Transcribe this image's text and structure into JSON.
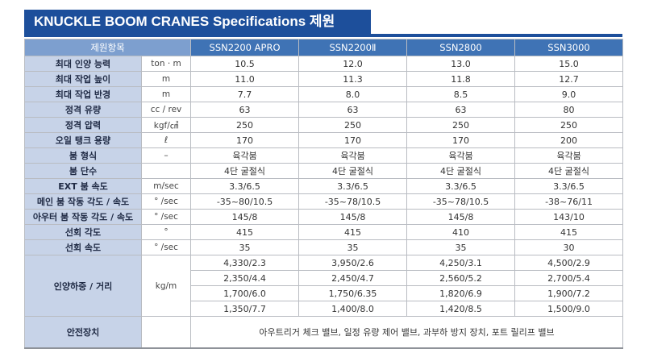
{
  "title": "KNUCKLE BOOM CRANES Specifications 제원",
  "header": {
    "item_label": "제원항목",
    "models": [
      "SSN2200 APRO",
      "SSN2200Ⅱ",
      "SSN2800",
      "SSN3000"
    ]
  },
  "rows": [
    {
      "label": "최대 인양 능력",
      "unit": "ton · m",
      "values": [
        "10.5",
        "12.0",
        "13.0",
        "15.0"
      ]
    },
    {
      "label": "최대 작업 높이",
      "unit": "m",
      "values": [
        "11.0",
        "11.3",
        "11.8",
        "12.7"
      ]
    },
    {
      "label": "최대 작업 반경",
      "unit": "m",
      "values": [
        "7.7",
        "8.0",
        "8.5",
        "9.0"
      ]
    },
    {
      "label": "정격 유량",
      "unit": "cc / rev",
      "values": [
        "63",
        "63",
        "63",
        "80"
      ]
    },
    {
      "label": "정격 압력",
      "unit": "kgf/㎠",
      "values": [
        "250",
        "250",
        "250",
        "250"
      ]
    },
    {
      "label": "오일 탱크 용량",
      "unit": "ℓ",
      "values": [
        "170",
        "170",
        "170",
        "200"
      ]
    },
    {
      "label": "붐 형식",
      "unit": "–",
      "values": [
        "육각붐",
        "육각붐",
        "육각붐",
        "육각붐"
      ]
    },
    {
      "label": "붐 단수",
      "unit": "",
      "values": [
        "4단 굴절식",
        "4단 굴절식",
        "4단 굴절식",
        "4단 굴절식"
      ]
    },
    {
      "label": "EXT 붐 속도",
      "unit": "m/sec",
      "values": [
        "3.3/6.5",
        "3.3/6.5",
        "3.3/6.5",
        "3.3/6.5"
      ]
    },
    {
      "label": "메인 붐 작동 각도 / 속도",
      "unit": "° /sec",
      "values": [
        "-35~80/10.5",
        "-35~78/10.5",
        "-35~78/10.5",
        "-38~76/11"
      ]
    },
    {
      "label": "아우터 붐 작동 각도 / 속도",
      "unit": "° /sec",
      "values": [
        "145/8",
        "145/8",
        "145/8",
        "143/10"
      ]
    },
    {
      "label": "선회 각도",
      "unit": "°",
      "values": [
        "415",
        "415",
        "410",
        "415"
      ]
    },
    {
      "label": "선회 속도",
      "unit": "° /sec",
      "values": [
        "35",
        "35",
        "35",
        "30"
      ]
    }
  ],
  "load": {
    "label": "인양하중 / 거리",
    "unit": "kg/m",
    "rows": [
      [
        "4,330/2.3",
        "3,950/2.6",
        "4,250/3.1",
        "4,500/2.9"
      ],
      [
        "2,350/4.4",
        "2,450/4.7",
        "2,560/5.2",
        "2,700/5.4"
      ],
      [
        "1,700/6.0",
        "1,750/6.35",
        "1,820/6.9",
        "1,900/7.2"
      ],
      [
        "1,350/7.7",
        "1,400/8.0",
        "1,420/8.5",
        "1,500/9.0"
      ]
    ]
  },
  "safety": {
    "label": "안전장치",
    "text": "아우트리거 체크 밸브, 일정 유량 제어 밸브, 과부하 방지 장치, 포트 릴리프 밸브"
  },
  "colors": {
    "title_bg": "#1d4f9b",
    "header_bg": "#3f73b5",
    "label_bg": "#c7d3e8"
  }
}
